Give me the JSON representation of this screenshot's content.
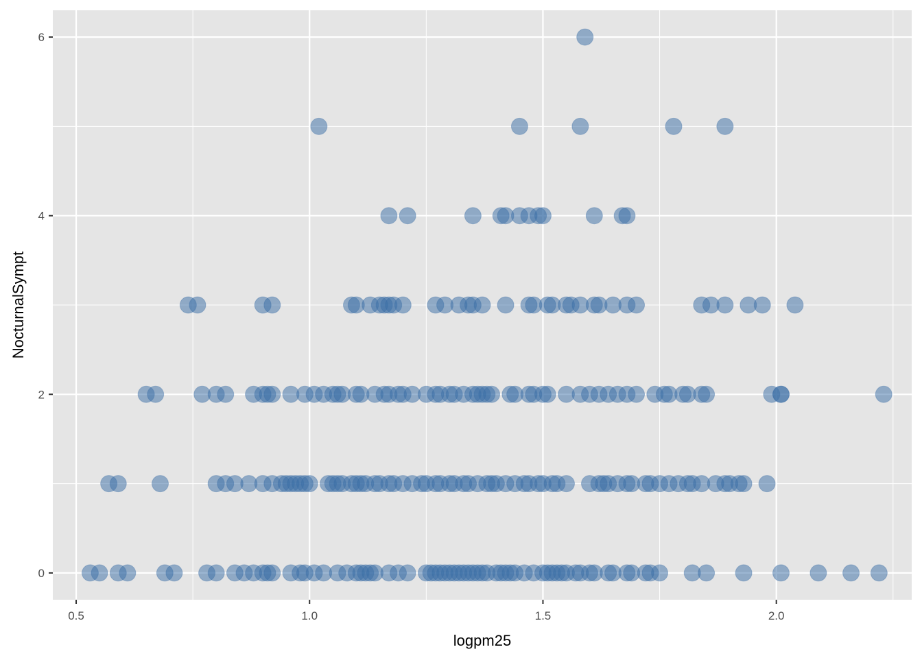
{
  "chart_data": {
    "type": "scatter",
    "title": "",
    "xlabel": "logpm25",
    "ylabel": "NocturnalSympt",
    "xlim": [
      0.45,
      2.29
    ],
    "ylim": [
      -0.3,
      6.3
    ],
    "x_ticks": [
      0.5,
      1.0,
      1.5,
      2.0
    ],
    "x_tick_labels": [
      "0.5",
      "1.0",
      "1.5",
      "2.0"
    ],
    "y_ticks": [
      0,
      2,
      4,
      6
    ],
    "y_tick_labels": [
      "0",
      "2",
      "4",
      "6"
    ],
    "grid": true,
    "legend": "none",
    "colors": {
      "panel": "#e5e5e5",
      "grid": "#ffffff",
      "point": "#3a6ea5"
    },
    "point_opacity": 0.5,
    "points": [
      {
        "x": 1.59,
        "y": 6
      },
      {
        "x": 1.02,
        "y": 5
      },
      {
        "x": 1.45,
        "y": 5
      },
      {
        "x": 1.58,
        "y": 5
      },
      {
        "x": 1.78,
        "y": 5
      },
      {
        "x": 1.89,
        "y": 5
      },
      {
        "x": 1.17,
        "y": 4
      },
      {
        "x": 1.21,
        "y": 4
      },
      {
        "x": 1.35,
        "y": 4
      },
      {
        "x": 1.41,
        "y": 4
      },
      {
        "x": 1.42,
        "y": 4
      },
      {
        "x": 1.45,
        "y": 4
      },
      {
        "x": 1.47,
        "y": 4
      },
      {
        "x": 1.49,
        "y": 4
      },
      {
        "x": 1.5,
        "y": 4
      },
      {
        "x": 1.61,
        "y": 4
      },
      {
        "x": 1.67,
        "y": 4
      },
      {
        "x": 1.68,
        "y": 4
      },
      {
        "x": 0.74,
        "y": 3
      },
      {
        "x": 0.76,
        "y": 3
      },
      {
        "x": 0.9,
        "y": 3
      },
      {
        "x": 0.92,
        "y": 3
      },
      {
        "x": 1.09,
        "y": 3
      },
      {
        "x": 1.1,
        "y": 3
      },
      {
        "x": 1.13,
        "y": 3
      },
      {
        "x": 1.15,
        "y": 3
      },
      {
        "x": 1.16,
        "y": 3
      },
      {
        "x": 1.17,
        "y": 3
      },
      {
        "x": 1.18,
        "y": 3
      },
      {
        "x": 1.2,
        "y": 3
      },
      {
        "x": 1.27,
        "y": 3
      },
      {
        "x": 1.29,
        "y": 3
      },
      {
        "x": 1.32,
        "y": 3
      },
      {
        "x": 1.34,
        "y": 3
      },
      {
        "x": 1.35,
        "y": 3
      },
      {
        "x": 1.37,
        "y": 3
      },
      {
        "x": 1.42,
        "y": 3
      },
      {
        "x": 1.47,
        "y": 3
      },
      {
        "x": 1.48,
        "y": 3
      },
      {
        "x": 1.51,
        "y": 3
      },
      {
        "x": 1.52,
        "y": 3
      },
      {
        "x": 1.55,
        "y": 3
      },
      {
        "x": 1.56,
        "y": 3
      },
      {
        "x": 1.58,
        "y": 3
      },
      {
        "x": 1.61,
        "y": 3
      },
      {
        "x": 1.62,
        "y": 3
      },
      {
        "x": 1.65,
        "y": 3
      },
      {
        "x": 1.68,
        "y": 3
      },
      {
        "x": 1.7,
        "y": 3
      },
      {
        "x": 1.84,
        "y": 3
      },
      {
        "x": 1.86,
        "y": 3
      },
      {
        "x": 1.89,
        "y": 3
      },
      {
        "x": 1.94,
        "y": 3
      },
      {
        "x": 1.97,
        "y": 3
      },
      {
        "x": 2.04,
        "y": 3
      },
      {
        "x": 0.65,
        "y": 2
      },
      {
        "x": 0.67,
        "y": 2
      },
      {
        "x": 0.77,
        "y": 2
      },
      {
        "x": 0.8,
        "y": 2
      },
      {
        "x": 0.82,
        "y": 2
      },
      {
        "x": 0.88,
        "y": 2
      },
      {
        "x": 0.9,
        "y": 2
      },
      {
        "x": 0.91,
        "y": 2
      },
      {
        "x": 0.92,
        "y": 2
      },
      {
        "x": 0.96,
        "y": 2
      },
      {
        "x": 0.99,
        "y": 2
      },
      {
        "x": 1.01,
        "y": 2
      },
      {
        "x": 1.03,
        "y": 2
      },
      {
        "x": 1.05,
        "y": 2
      },
      {
        "x": 1.06,
        "y": 2
      },
      {
        "x": 1.07,
        "y": 2
      },
      {
        "x": 1.1,
        "y": 2
      },
      {
        "x": 1.11,
        "y": 2
      },
      {
        "x": 1.14,
        "y": 2
      },
      {
        "x": 1.16,
        "y": 2
      },
      {
        "x": 1.17,
        "y": 2
      },
      {
        "x": 1.19,
        "y": 2
      },
      {
        "x": 1.2,
        "y": 2
      },
      {
        "x": 1.22,
        "y": 2
      },
      {
        "x": 1.25,
        "y": 2
      },
      {
        "x": 1.27,
        "y": 2
      },
      {
        "x": 1.28,
        "y": 2
      },
      {
        "x": 1.3,
        "y": 2
      },
      {
        "x": 1.31,
        "y": 2
      },
      {
        "x": 1.33,
        "y": 2
      },
      {
        "x": 1.35,
        "y": 2
      },
      {
        "x": 1.36,
        "y": 2
      },
      {
        "x": 1.37,
        "y": 2
      },
      {
        "x": 1.38,
        "y": 2
      },
      {
        "x": 1.39,
        "y": 2
      },
      {
        "x": 1.43,
        "y": 2
      },
      {
        "x": 1.44,
        "y": 2
      },
      {
        "x": 1.47,
        "y": 2
      },
      {
        "x": 1.48,
        "y": 2
      },
      {
        "x": 1.5,
        "y": 2
      },
      {
        "x": 1.51,
        "y": 2
      },
      {
        "x": 1.55,
        "y": 2
      },
      {
        "x": 1.58,
        "y": 2
      },
      {
        "x": 1.6,
        "y": 2
      },
      {
        "x": 1.62,
        "y": 2
      },
      {
        "x": 1.64,
        "y": 2
      },
      {
        "x": 1.66,
        "y": 2
      },
      {
        "x": 1.68,
        "y": 2
      },
      {
        "x": 1.7,
        "y": 2
      },
      {
        "x": 1.74,
        "y": 2
      },
      {
        "x": 1.76,
        "y": 2
      },
      {
        "x": 1.77,
        "y": 2
      },
      {
        "x": 1.8,
        "y": 2
      },
      {
        "x": 1.81,
        "y": 2
      },
      {
        "x": 1.84,
        "y": 2
      },
      {
        "x": 1.85,
        "y": 2
      },
      {
        "x": 1.99,
        "y": 2
      },
      {
        "x": 2.01,
        "y": 2
      },
      {
        "x": 2.01,
        "y": 2
      },
      {
        "x": 2.23,
        "y": 2
      },
      {
        "x": 0.57,
        "y": 1
      },
      {
        "x": 0.59,
        "y": 1
      },
      {
        "x": 0.68,
        "y": 1
      },
      {
        "x": 0.8,
        "y": 1
      },
      {
        "x": 0.82,
        "y": 1
      },
      {
        "x": 0.84,
        "y": 1
      },
      {
        "x": 0.87,
        "y": 1
      },
      {
        "x": 0.9,
        "y": 1
      },
      {
        "x": 0.92,
        "y": 1
      },
      {
        "x": 0.94,
        "y": 1
      },
      {
        "x": 0.95,
        "y": 1
      },
      {
        "x": 0.96,
        "y": 1
      },
      {
        "x": 0.97,
        "y": 1
      },
      {
        "x": 0.98,
        "y": 1
      },
      {
        "x": 0.99,
        "y": 1
      },
      {
        "x": 1.0,
        "y": 1
      },
      {
        "x": 1.04,
        "y": 1
      },
      {
        "x": 1.05,
        "y": 1
      },
      {
        "x": 1.06,
        "y": 1
      },
      {
        "x": 1.07,
        "y": 1
      },
      {
        "x": 1.09,
        "y": 1
      },
      {
        "x": 1.1,
        "y": 1
      },
      {
        "x": 1.11,
        "y": 1
      },
      {
        "x": 1.12,
        "y": 1
      },
      {
        "x": 1.14,
        "y": 1
      },
      {
        "x": 1.15,
        "y": 1
      },
      {
        "x": 1.17,
        "y": 1
      },
      {
        "x": 1.18,
        "y": 1
      },
      {
        "x": 1.2,
        "y": 1
      },
      {
        "x": 1.22,
        "y": 1
      },
      {
        "x": 1.24,
        "y": 1
      },
      {
        "x": 1.25,
        "y": 1
      },
      {
        "x": 1.27,
        "y": 1
      },
      {
        "x": 1.28,
        "y": 1
      },
      {
        "x": 1.3,
        "y": 1
      },
      {
        "x": 1.31,
        "y": 1
      },
      {
        "x": 1.33,
        "y": 1
      },
      {
        "x": 1.34,
        "y": 1
      },
      {
        "x": 1.36,
        "y": 1
      },
      {
        "x": 1.38,
        "y": 1
      },
      {
        "x": 1.39,
        "y": 1
      },
      {
        "x": 1.4,
        "y": 1
      },
      {
        "x": 1.42,
        "y": 1
      },
      {
        "x": 1.44,
        "y": 1
      },
      {
        "x": 1.46,
        "y": 1
      },
      {
        "x": 1.47,
        "y": 1
      },
      {
        "x": 1.49,
        "y": 1
      },
      {
        "x": 1.5,
        "y": 1
      },
      {
        "x": 1.52,
        "y": 1
      },
      {
        "x": 1.53,
        "y": 1
      },
      {
        "x": 1.55,
        "y": 1
      },
      {
        "x": 1.6,
        "y": 1
      },
      {
        "x": 1.62,
        "y": 1
      },
      {
        "x": 1.63,
        "y": 1
      },
      {
        "x": 1.64,
        "y": 1
      },
      {
        "x": 1.66,
        "y": 1
      },
      {
        "x": 1.68,
        "y": 1
      },
      {
        "x": 1.69,
        "y": 1
      },
      {
        "x": 1.72,
        "y": 1
      },
      {
        "x": 1.73,
        "y": 1
      },
      {
        "x": 1.75,
        "y": 1
      },
      {
        "x": 1.77,
        "y": 1
      },
      {
        "x": 1.79,
        "y": 1
      },
      {
        "x": 1.81,
        "y": 1
      },
      {
        "x": 1.82,
        "y": 1
      },
      {
        "x": 1.84,
        "y": 1
      },
      {
        "x": 1.87,
        "y": 1
      },
      {
        "x": 1.89,
        "y": 1
      },
      {
        "x": 1.9,
        "y": 1
      },
      {
        "x": 1.92,
        "y": 1
      },
      {
        "x": 1.93,
        "y": 1
      },
      {
        "x": 1.98,
        "y": 1
      },
      {
        "x": 0.53,
        "y": 0
      },
      {
        "x": 0.55,
        "y": 0
      },
      {
        "x": 0.59,
        "y": 0
      },
      {
        "x": 0.61,
        "y": 0
      },
      {
        "x": 0.69,
        "y": 0
      },
      {
        "x": 0.71,
        "y": 0
      },
      {
        "x": 0.78,
        "y": 0
      },
      {
        "x": 0.8,
        "y": 0
      },
      {
        "x": 0.84,
        "y": 0
      },
      {
        "x": 0.86,
        "y": 0
      },
      {
        "x": 0.88,
        "y": 0
      },
      {
        "x": 0.9,
        "y": 0
      },
      {
        "x": 0.91,
        "y": 0
      },
      {
        "x": 0.92,
        "y": 0
      },
      {
        "x": 0.96,
        "y": 0
      },
      {
        "x": 0.98,
        "y": 0
      },
      {
        "x": 0.99,
        "y": 0
      },
      {
        "x": 1.01,
        "y": 0
      },
      {
        "x": 1.03,
        "y": 0
      },
      {
        "x": 1.06,
        "y": 0
      },
      {
        "x": 1.08,
        "y": 0
      },
      {
        "x": 1.1,
        "y": 0
      },
      {
        "x": 1.11,
        "y": 0
      },
      {
        "x": 1.12,
        "y": 0
      },
      {
        "x": 1.13,
        "y": 0
      },
      {
        "x": 1.14,
        "y": 0
      },
      {
        "x": 1.17,
        "y": 0
      },
      {
        "x": 1.19,
        "y": 0
      },
      {
        "x": 1.21,
        "y": 0
      },
      {
        "x": 1.25,
        "y": 0
      },
      {
        "x": 1.26,
        "y": 0
      },
      {
        "x": 1.27,
        "y": 0
      },
      {
        "x": 1.28,
        "y": 0
      },
      {
        "x": 1.29,
        "y": 0
      },
      {
        "x": 1.3,
        "y": 0
      },
      {
        "x": 1.31,
        "y": 0
      },
      {
        "x": 1.32,
        "y": 0
      },
      {
        "x": 1.33,
        "y": 0
      },
      {
        "x": 1.34,
        "y": 0
      },
      {
        "x": 1.35,
        "y": 0
      },
      {
        "x": 1.36,
        "y": 0
      },
      {
        "x": 1.37,
        "y": 0
      },
      {
        "x": 1.38,
        "y": 0
      },
      {
        "x": 1.4,
        "y": 0
      },
      {
        "x": 1.41,
        "y": 0
      },
      {
        "x": 1.42,
        "y": 0
      },
      {
        "x": 1.43,
        "y": 0
      },
      {
        "x": 1.44,
        "y": 0
      },
      {
        "x": 1.46,
        "y": 0
      },
      {
        "x": 1.48,
        "y": 0
      },
      {
        "x": 1.5,
        "y": 0
      },
      {
        "x": 1.51,
        "y": 0
      },
      {
        "x": 1.52,
        "y": 0
      },
      {
        "x": 1.53,
        "y": 0
      },
      {
        "x": 1.54,
        "y": 0
      },
      {
        "x": 1.55,
        "y": 0
      },
      {
        "x": 1.57,
        "y": 0
      },
      {
        "x": 1.58,
        "y": 0
      },
      {
        "x": 1.6,
        "y": 0
      },
      {
        "x": 1.61,
        "y": 0
      },
      {
        "x": 1.64,
        "y": 0
      },
      {
        "x": 1.65,
        "y": 0
      },
      {
        "x": 1.68,
        "y": 0
      },
      {
        "x": 1.69,
        "y": 0
      },
      {
        "x": 1.72,
        "y": 0
      },
      {
        "x": 1.73,
        "y": 0
      },
      {
        "x": 1.75,
        "y": 0
      },
      {
        "x": 1.82,
        "y": 0
      },
      {
        "x": 1.85,
        "y": 0
      },
      {
        "x": 1.93,
        "y": 0
      },
      {
        "x": 2.01,
        "y": 0
      },
      {
        "x": 2.09,
        "y": 0
      },
      {
        "x": 2.16,
        "y": 0
      },
      {
        "x": 2.22,
        "y": 0
      }
    ]
  }
}
